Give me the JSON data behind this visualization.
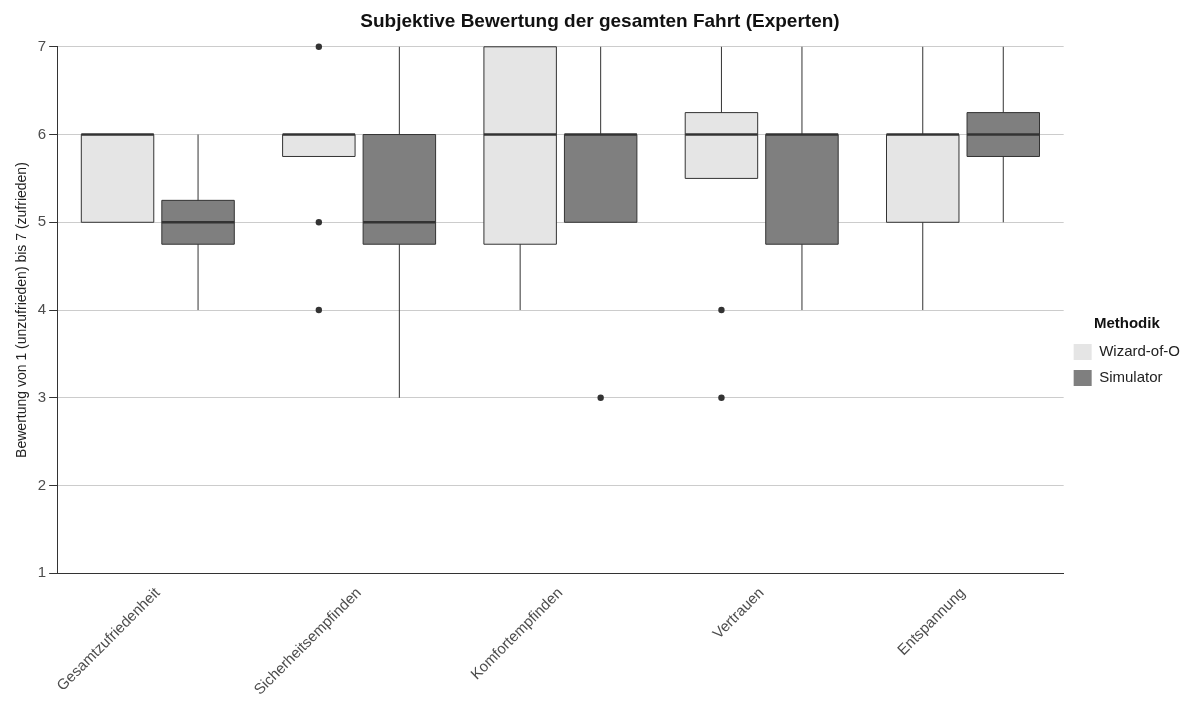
{
  "chart_data": {
    "type": "box",
    "title": "Subjektive Bewertung der gesamten Fahrt (Experten)",
    "ylabel": "Bewertung von 1 (unzufrieden) bis 7 (zufrieden)",
    "legend_title": "Methodik",
    "categories": [
      "Gesamtzufriedenheit",
      "Sicherheitsempfinden",
      "Komfortempfinden",
      "Vertrauen",
      "Entspannung"
    ],
    "series": [
      {
        "name": "Wizard-of-O",
        "color": "#e5e5e5",
        "boxes": [
          {
            "low": 5,
            "q1": 5,
            "median": 6,
            "q3": 6,
            "high": 6
          },
          {
            "low": 5.75,
            "q1": 5.75,
            "median": 6,
            "q3": 6,
            "high": 6,
            "outliers": [
              7,
              5,
              4
            ]
          },
          {
            "low": 4,
            "q1": 4.75,
            "median": 6,
            "q3": 7,
            "high": 7
          },
          {
            "low": 5.5,
            "q1": 5.5,
            "median": 6,
            "q3": 6.25,
            "high": 7,
            "outliers": [
              4,
              3
            ]
          },
          {
            "low": 4,
            "q1": 5,
            "median": 6,
            "q3": 6,
            "high": 7
          }
        ]
      },
      {
        "name": "Simulator",
        "color": "#7f7f7f",
        "boxes": [
          {
            "low": 4,
            "q1": 4.75,
            "median": 5,
            "q3": 5.25,
            "high": 6
          },
          {
            "low": 3,
            "q1": 4.75,
            "median": 5,
            "q3": 6,
            "high": 7
          },
          {
            "low": 5,
            "q1": 5,
            "median": 6,
            "q3": 6,
            "high": 7,
            "outliers": [
              3
            ]
          },
          {
            "low": 4,
            "q1": 4.75,
            "median": 6,
            "q3": 6,
            "high": 7
          },
          {
            "low": 5,
            "q1": 5.75,
            "median": 6,
            "q3": 6.25,
            "high": 7
          }
        ]
      }
    ],
    "ylim": [
      1,
      7
    ],
    "yticks": [
      1,
      2,
      3,
      4,
      5,
      6,
      7
    ],
    "grid": "y",
    "legend": "right"
  }
}
